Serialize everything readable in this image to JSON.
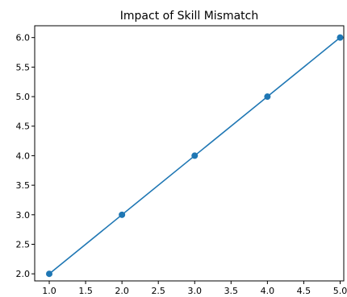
{
  "chart_data": {
    "type": "line",
    "title": "Impact of Skill Mismatch",
    "xlabel": "",
    "ylabel": "",
    "x": [
      1,
      2,
      3,
      4,
      5
    ],
    "series": [
      {
        "values": [
          2,
          3,
          4,
          5,
          6
        ],
        "color": "#1f77b4",
        "marker": "circle"
      }
    ],
    "xlim": [
      0.8,
      5.05
    ],
    "ylim": [
      1.88,
      6.2
    ],
    "xticks": [
      1.0,
      1.5,
      2.0,
      2.5,
      3.0,
      3.5,
      4.0,
      4.5,
      5.0
    ],
    "yticks": [
      2.0,
      2.5,
      3.0,
      3.5,
      4.0,
      4.5,
      5.0,
      5.5,
      6.0
    ],
    "grid": false,
    "legend": false
  }
}
